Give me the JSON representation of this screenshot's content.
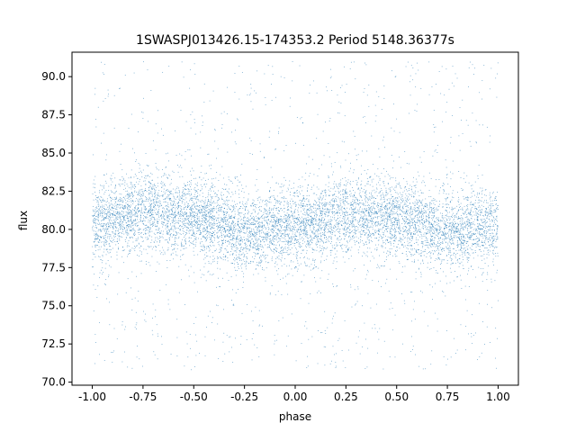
{
  "chart_data": {
    "type": "scatter",
    "title": "1SWASPJ013426.15-174353.2 Period 5148.36377s",
    "xlabel": "phase",
    "ylabel": "flux",
    "xlim": [
      -1.1,
      1.1
    ],
    "ylim": [
      69.8,
      91.6
    ],
    "xticks": [
      "-1.00",
      "-0.75",
      "-0.50",
      "-0.25",
      "0.00",
      "0.25",
      "0.50",
      "0.75",
      "1.00"
    ],
    "xtick_values": [
      -1.0,
      -0.75,
      -0.5,
      -0.25,
      0.0,
      0.25,
      0.5,
      0.75,
      1.0
    ],
    "yticks": [
      "70.0",
      "72.5",
      "75.0",
      "77.5",
      "80.0",
      "82.5",
      "85.0",
      "87.5",
      "90.0"
    ],
    "ytick_values": [
      70.0,
      72.5,
      75.0,
      77.5,
      80.0,
      82.5,
      85.0,
      87.5,
      90.0
    ],
    "marker_color": "#1f77b4",
    "grid": false,
    "series": [
      {
        "x_range": [
          -1.0,
          1.0
        ],
        "y_range": [
          70.8,
          91.0
        ],
        "core_center": 80.3,
        "core_band": [
          77.8,
          82.7
        ],
        "points": [
          [
            -1.0,
            80.3
          ],
          [
            -0.75,
            81.2
          ],
          [
            -0.5,
            80.8
          ],
          [
            -0.25,
            79.8
          ],
          [
            0.0,
            80.2
          ],
          [
            0.25,
            81.0
          ],
          [
            0.5,
            80.7
          ],
          [
            0.75,
            79.9
          ],
          [
            1.0,
            80.3
          ]
        ]
      }
    ]
  }
}
